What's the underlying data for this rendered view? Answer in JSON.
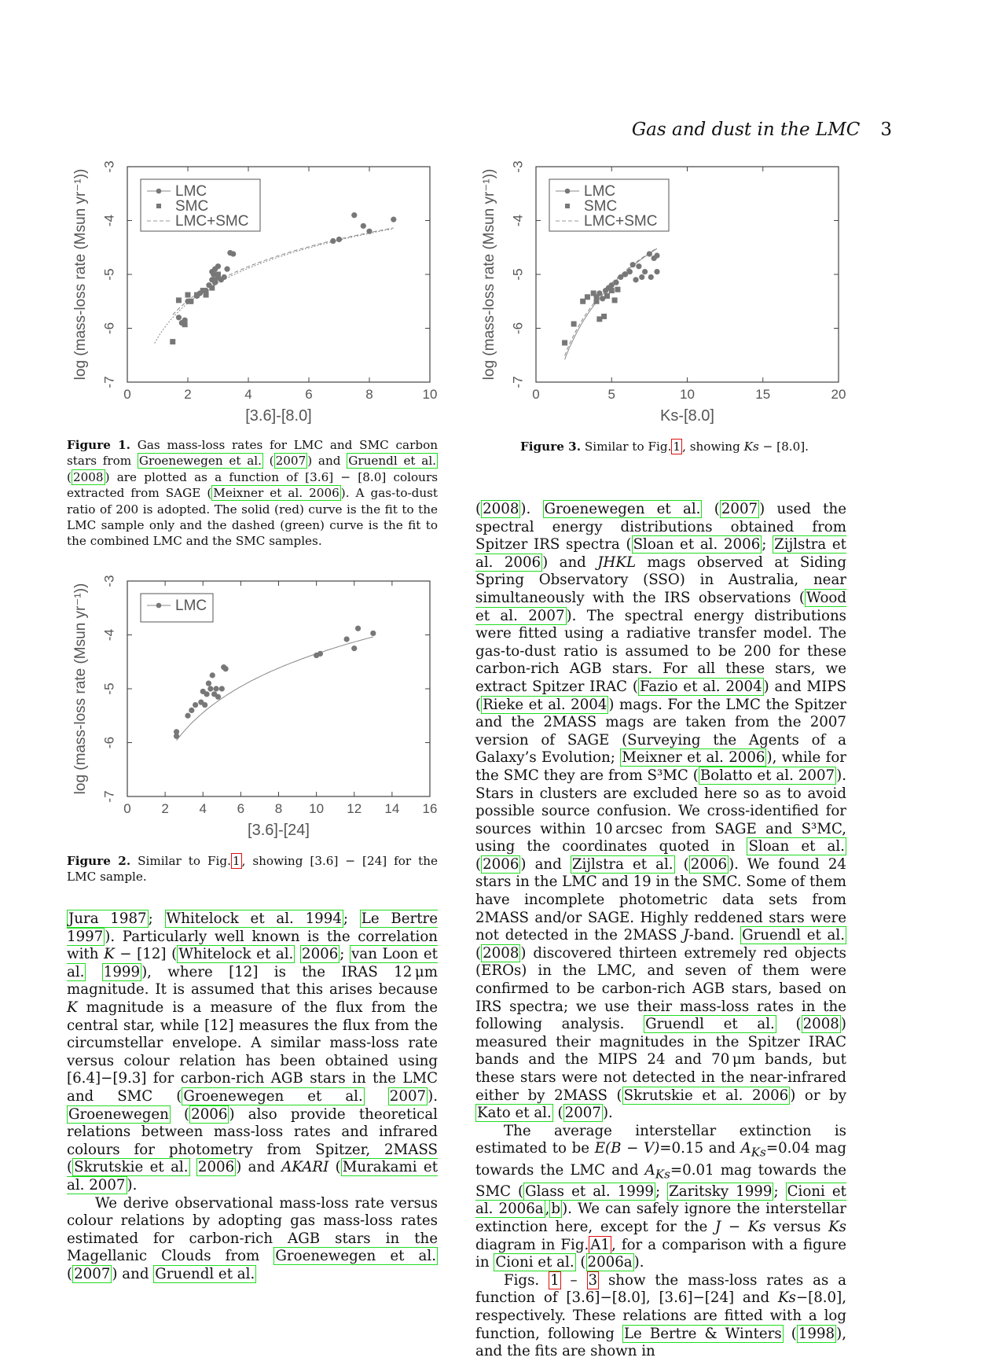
{
  "header": {
    "title": "Gas and dust in the LMC",
    "page": "3"
  },
  "figures": [
    {
      "caption_label": "Figure 1.",
      "chart_data": {
        "type": "scatter",
        "xlabel": "[3.6]-[8.0]",
        "ylabel": "log (mass-loss rate (Msun yr⁻¹))",
        "xlim": [
          0,
          10
        ],
        "ylim": [
          -7,
          -3
        ],
        "xticks": [
          0,
          2,
          4,
          6,
          8,
          10
        ],
        "yticks": [
          -3,
          -4,
          -5,
          -6,
          -7
        ],
        "legend": [
          "LMC",
          "SMC",
          "LMC+SMC"
        ],
        "series": [
          {
            "name": "LMC",
            "marker": "circle",
            "x": [
              1.7,
              1.8,
              1.9,
              2.0,
              2.1,
              2.3,
              2.4,
              2.6,
              2.7,
              2.8,
              2.8,
              2.85,
              2.9,
              2.9,
              3.0,
              3.0,
              3.1,
              3.2,
              3.3,
              3.4,
              3.5,
              6.8,
              7.0,
              7.5,
              7.8,
              8.0,
              8.8
            ],
            "y": [
              -5.8,
              -5.9,
              -5.85,
              -5.5,
              -5.5,
              -5.4,
              -5.35,
              -5.3,
              -5.2,
              -5.1,
              -4.95,
              -5.0,
              -4.9,
              -5.15,
              -5.05,
              -4.85,
              -5.1,
              -5.05,
              -4.9,
              -4.6,
              -4.62,
              -4.38,
              -4.35,
              -3.9,
              -4.1,
              -4.2,
              -3.98
            ]
          },
          {
            "name": "SMC",
            "marker": "square",
            "x": [
              1.5,
              1.7,
              1.9,
              2.0,
              2.1,
              2.3,
              2.5,
              2.6,
              2.8,
              2.9,
              3.0
            ],
            "y": [
              -6.25,
              -5.48,
              -5.93,
              -5.38,
              -5.5,
              -5.38,
              -5.3,
              -5.38,
              -5.25,
              -5.1,
              -5.0
            ]
          }
        ],
        "fits": [
          "LMC",
          "LMC+SMC"
        ]
      }
    },
    {
      "caption_label": "Figure 2.",
      "chart_data": {
        "type": "scatter",
        "xlabel": "[3.6]-[24]",
        "ylabel": "log (mass-loss rate (Msun yr⁻¹))",
        "xlim": [
          0,
          16
        ],
        "ylim": [
          -7,
          -3
        ],
        "xticks": [
          0,
          2,
          4,
          6,
          8,
          10,
          12,
          14,
          16
        ],
        "yticks": [
          -3,
          -4,
          -5,
          -6,
          -7
        ],
        "legend": [
          "LMC"
        ],
        "series": [
          {
            "name": "LMC",
            "marker": "circle",
            "x": [
              2.6,
              2.6,
              3.2,
              3.4,
              3.6,
              3.9,
              4.0,
              4.1,
              4.2,
              4.3,
              4.4,
              4.5,
              4.6,
              4.7,
              4.8,
              5.0,
              5.1,
              5.2,
              10.0,
              10.2,
              11.6,
              12.0,
              12.2,
              13.0
            ],
            "y": [
              -5.8,
              -5.88,
              -5.5,
              -5.4,
              -5.3,
              -5.25,
              -5.05,
              -5.3,
              -5.1,
              -4.9,
              -5.0,
              -4.75,
              -5.1,
              -5.0,
              -5.15,
              -5.0,
              -4.6,
              -4.63,
              -4.38,
              -4.35,
              -4.08,
              -4.25,
              -3.88,
              -3.97
            ]
          }
        ],
        "fits": [
          "LMC"
        ]
      }
    },
    {
      "caption_label": "Figure 3.",
      "chart_data": {
        "type": "scatter",
        "xlabel": "Ks-[8.0]",
        "ylabel": "log (mass-loss rate (Msun yr⁻¹))",
        "xlim": [
          0,
          20
        ],
        "ylim": [
          -7,
          -3
        ],
        "xticks": [
          0,
          5,
          10,
          15,
          20
        ],
        "yticks": [
          -3,
          -4,
          -5,
          -6,
          -7
        ],
        "legend": [
          "LMC",
          "SMC",
          "LMC+SMC"
        ],
        "series": [
          {
            "name": "LMC",
            "marker": "circle",
            "x": [
              4.0,
              4.2,
              4.4,
              4.6,
              4.8,
              5.0,
              5.3,
              5.6,
              5.9,
              6.2,
              6.4,
              6.6,
              6.8,
              7.0,
              7.2,
              7.5,
              7.6,
              7.8,
              8.0,
              8.0
            ],
            "y": [
              -5.42,
              -5.35,
              -5.45,
              -5.3,
              -5.25,
              -5.2,
              -5.15,
              -5.05,
              -5.0,
              -4.95,
              -4.82,
              -5.1,
              -4.85,
              -5.05,
              -4.95,
              -4.62,
              -5.05,
              -4.7,
              -4.65,
              -4.95
            ]
          },
          {
            "name": "SMC",
            "marker": "square",
            "x": [
              1.9,
              2.5,
              3.1,
              3.4,
              3.8,
              4.0,
              4.2,
              4.5,
              4.7,
              5.0,
              5.2,
              5.4
            ],
            "y": [
              -6.27,
              -5.92,
              -5.5,
              -5.42,
              -5.35,
              -5.5,
              -5.83,
              -5.78,
              -5.4,
              -5.3,
              -5.48,
              -5.28
            ]
          }
        ],
        "fits": [
          "LMC",
          "LMC+SMC"
        ]
      }
    }
  ],
  "captions": {
    "fig1": {
      "p1": " Gas mass-loss rates for LMC and SMC carbon stars from ",
      "r1": "Groenewegen et al.",
      "r2": "2007",
      "p2": " and ",
      "r3": "Gruendl et al.",
      "r4": "2008",
      "p3": " are plotted as a function of [3.6] − [8.0] colours extracted from SAGE ",
      "r5": "Meixner et al. 2006",
      "p4": "). A gas-to-dust ratio of 200 is adopted. The solid (red) curve is the fit to the LMC sample only and the dashed (green) curve is the fit to the combined LMC and the SMC samples."
    },
    "fig2": {
      "p1": " Similar to Fig.",
      "r1": "1",
      "p2": ", showing [3.6] − [24] for the LMC sample."
    },
    "fig3": {
      "p1": " Similar to Fig.",
      "r1": "1",
      "p2": ", showing ",
      "m1": "Ks",
      "p3": " − [8.0]."
    }
  },
  "left_text": {
    "a1": "Jura 1987",
    "s1": "; ",
    "a2": "Whitelock et al. 1994",
    "s2": "; ",
    "a3": "Le Bertre 1997",
    "t1": "). Particularly well known is the correlation with ",
    "m1": "K",
    "t2": " − [12] (",
    "a4": "Whitelock et al.",
    "a5": "2006",
    "s3": "; ",
    "a6": "van Loon et al.",
    "a7": "1999",
    "t3": "), where [12] is the IRAS 12 μm magnitude. It is assumed that this arises because ",
    "m2": "K",
    "t4": " magnitude is a measure of the flux from the central star, while [12] measures the flux from the circumstellar envelope. A similar mass-loss rate versus colour relation has been obtained using [6.4]−[9.3] for carbon-rich AGB stars in the LMC and SMC (",
    "a8": "Groenewegen et al.",
    "a9": "2007",
    "t5": "). ",
    "a10": "Groenewegen",
    "a11": "2006",
    "t6": ") also provide theoretical relations between mass-loss rates and infrared colours for photometry from Spitzer, 2MASS (",
    "a12": "Skrutskie et al.",
    "a13": "2006",
    "t7": ") and ",
    "m3": "AKARI",
    "t8": " (",
    "a14": "Murakami et al. 2007",
    "t9": ").",
    "p2": "We derive observational mass-loss rate versus colour relations by adopting gas mass-loss rates estimated for carbon-rich AGB stars in the Magellanic Clouds from ",
    "a15": "Groenewegen et al.",
    "a16": "2007",
    "t10": " and ",
    "a17": "Gruendl et al."
  },
  "right_text": {
    "b1": "2008",
    "u1": "). ",
    "b2": "Groenewegen et al.",
    "b3": "2007",
    "u2": " used the spectral energy distributions obtained from Spitzer IRS spectra (",
    "b4": "Sloan et al. 2006",
    "u3": "; ",
    "b5": "Zijlstra et al. 2006",
    "u4": ") and ",
    "n1": "JHKL",
    "u5": " mags observed at Siding Spring Observatory (SSO) in Australia, near simultaneously with the IRS observations (",
    "b6": "Wood et al. 2007",
    "u6": "). The spectral energy distributions were fitted using a radiative transfer model. The gas-to-dust ratio is assumed to be 200 for these carbon-rich AGB stars. For all these stars, we extract Spitzer IRAC (",
    "b7": "Fazio et al. 2004",
    "u7": ") and MIPS (",
    "b8": "Rieke et al. 2004",
    "u8": ") mags. For the LMC the Spitzer and the 2MASS mags are taken from the 2007 version of SAGE (Surveying the Agents of a Galaxy’s Evolution; ",
    "b9": "Meixner et al. 2006",
    "u9": "), while for the SMC they are from S³MC (",
    "b10": "Bolatto et al. 2007",
    "u10": "). Stars in clusters are excluded here so as to avoid possible source confusion. We cross-identified for sources within 10 arcsec from SAGE and S³MC, using the coordinates quoted in ",
    "b11": "Sloan et al.",
    "b12": "2006",
    "u11": " and ",
    "b13": "Zijlstra et al.",
    "b14": "2006",
    "u12": "). We found 24 stars in the LMC and 19 in the SMC. Some of them have incomplete photometric data sets from 2MASS and/or SAGE. Highly reddened stars were not detected in the 2MASS ",
    "n2": "J",
    "u13": "-band. ",
    "b15": "Gruendl et al.",
    "b16": "2008",
    "u14": ") discovered thirteen extremely red objects (EROs) in the LMC, and seven of them were confirmed to be carbon-rich AGB stars, based on IRS spectra; we use their mass-loss rates in the following analysis. ",
    "b17": "Gruendl et al.",
    "b18": "2008",
    "u15": ") measured their magnitudes in the Spitzer IRAC bands and the MIPS 24 and 70 μm bands, but these stars were not detected in the near-infrared either by 2MASS (",
    "b19": "Skrutskie et al. 2006",
    "u16": ") or by ",
    "b20": "Kato et al.",
    "b21": "2007",
    "u17": ").",
    "q1": "The average interstellar extinction is estimated to be ",
    "n3": "E(B − V)",
    "u18": "=0.15 and ",
    "n4": "A",
    "n4s": "Ks",
    "u19": "=0.04 mag towards the LMC and ",
    "n5": "A",
    "n5s": "Ks",
    "u20": "=0.01 mag towards the SMC (",
    "b22": "Glass et al. 1999",
    "u21": "; ",
    "b23": "Zaritsky 1999",
    "u22": "; ",
    "b24": "Cioni et al. 2006a",
    "u23": ",",
    "b25": "b",
    "u24": "). We can safely ignore the interstellar extinction here, except for the ",
    "n6": "J − Ks",
    "u25": " versus ",
    "n7": "Ks",
    "u26": " diagram in Fig.",
    "c1": "A1",
    "u27": ", for a comparison with a figure in ",
    "b26": "Cioni et al.",
    "b27": "2006a",
    "u28": ").",
    "q2": "Figs. ",
    "c2": "1",
    "u29": " – ",
    "c3": "3",
    "u30": " show the mass-loss rates as a function of [3.6]−[8.0], [3.6]−[24] and ",
    "n8": "Ks",
    "u31": "−[8.0], respectively. These relations are fitted with a log function, following ",
    "b28": "Le Bertre & Winters",
    "b29": "1998",
    "u32": ", and the fits are shown in"
  }
}
